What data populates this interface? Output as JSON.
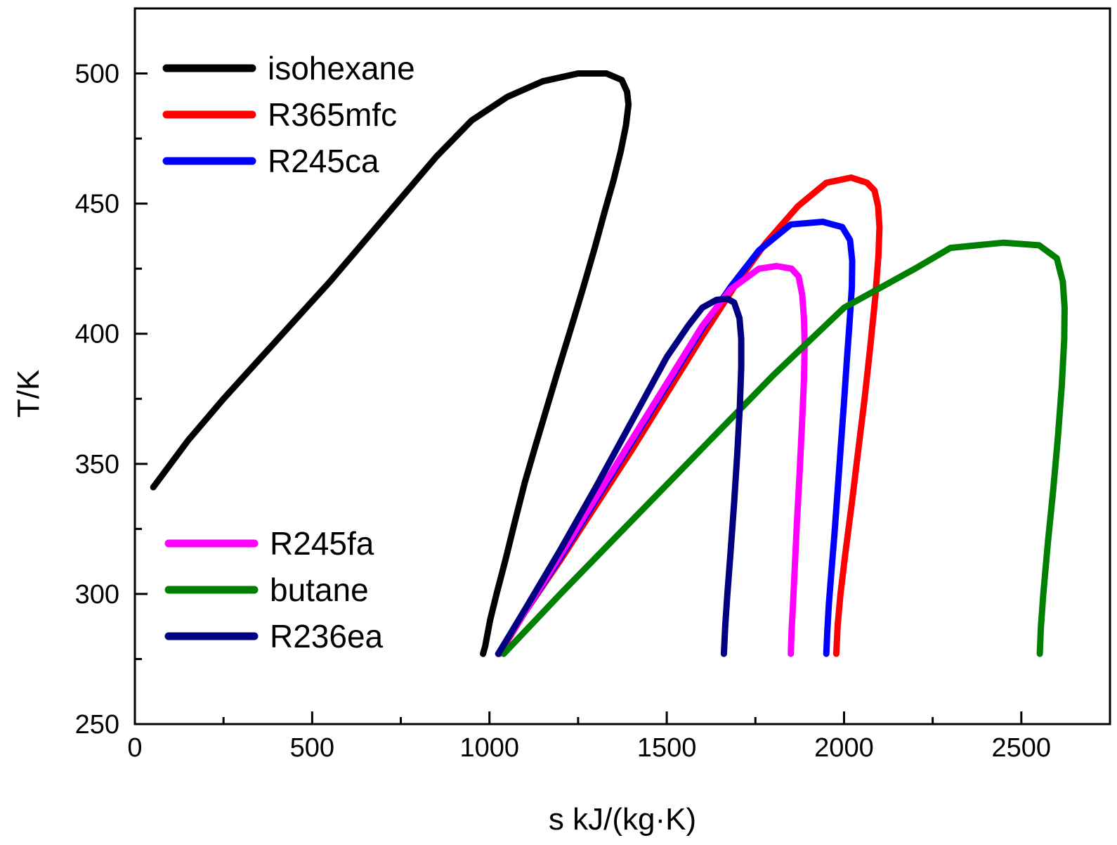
{
  "chart_data": {
    "type": "line",
    "title": "",
    "xlabel": "s kJ/(kg·K)",
    "ylabel": "T/K",
    "xlim": [
      0,
      2750
    ],
    "ylim": [
      250,
      525
    ],
    "xticks": [
      0,
      500,
      1000,
      1500,
      2000,
      2500
    ],
    "yticks": [
      250,
      300,
      350,
      400,
      450,
      500
    ],
    "x_minor_step": 250,
    "y_minor_step": 25,
    "grid": false,
    "legend_groups": [
      {
        "placement": "top-left",
        "entries": [
          "isohexane",
          "R365mfc",
          "R245ca"
        ]
      },
      {
        "placement": "bottom-left",
        "entries": [
          "R245fa",
          "butane",
          "R236ea"
        ]
      }
    ],
    "series": [
      {
        "name": "isohexane",
        "color": "#000000",
        "points": [
          [
            52,
            341
          ],
          [
            150,
            359
          ],
          [
            250,
            375
          ],
          [
            350,
            390
          ],
          [
            450,
            405
          ],
          [
            550,
            420
          ],
          [
            650,
            436
          ],
          [
            750,
            452
          ],
          [
            850,
            468
          ],
          [
            950,
            482
          ],
          [
            1050,
            491
          ],
          [
            1150,
            497
          ],
          [
            1250,
            500
          ],
          [
            1330,
            500
          ],
          [
            1373,
            497.5
          ],
          [
            1388,
            493
          ],
          [
            1392,
            488
          ],
          [
            1385,
            480
          ],
          [
            1370,
            470
          ],
          [
            1350,
            459
          ],
          [
            1325,
            447
          ],
          [
            1297,
            433
          ],
          [
            1265,
            418
          ],
          [
            1232,
            403
          ],
          [
            1198,
            388
          ],
          [
            1165,
            373
          ],
          [
            1130,
            357
          ],
          [
            1100,
            343
          ],
          [
            1072,
            328
          ],
          [
            1045,
            313
          ],
          [
            1020,
            300
          ],
          [
            1002,
            290
          ],
          [
            988,
            280
          ],
          [
            982,
            277
          ]
        ]
      },
      {
        "name": "R365mfc",
        "color": "#ff0000",
        "points": [
          [
            1028,
            277
          ],
          [
            1100,
            293
          ],
          [
            1200,
            313
          ],
          [
            1300,
            334
          ],
          [
            1400,
            355
          ],
          [
            1500,
            377
          ],
          [
            1600,
            399
          ],
          [
            1700,
            420
          ],
          [
            1780,
            435
          ],
          [
            1870,
            449
          ],
          [
            1950,
            458
          ],
          [
            2020,
            460
          ],
          [
            2065,
            458
          ],
          [
            2086,
            455
          ],
          [
            2096,
            449
          ],
          [
            2100,
            441
          ],
          [
            2097,
            430
          ],
          [
            2088,
            414
          ],
          [
            2074,
            395
          ],
          [
            2058,
            375
          ],
          [
            2040,
            355
          ],
          [
            2022,
            335
          ],
          [
            2004,
            316
          ],
          [
            1990,
            300
          ],
          [
            1982,
            288
          ],
          [
            1978,
            277
          ]
        ]
      },
      {
        "name": "R245ca",
        "color": "#0000ff",
        "points": [
          [
            1025,
            277
          ],
          [
            1100,
            293
          ],
          [
            1200,
            314
          ],
          [
            1300,
            336
          ],
          [
            1400,
            358
          ],
          [
            1500,
            380
          ],
          [
            1600,
            402
          ],
          [
            1680,
            418
          ],
          [
            1760,
            432
          ],
          [
            1850,
            442
          ],
          [
            1940,
            443
          ],
          [
            1995,
            441
          ],
          [
            2017,
            436
          ],
          [
            2023,
            428
          ],
          [
            2022,
            418
          ],
          [
            2016,
            405
          ],
          [
            2008,
            390
          ],
          [
            2000,
            374
          ],
          [
            1991,
            357
          ],
          [
            1982,
            340
          ],
          [
            1973,
            323
          ],
          [
            1964,
            308
          ],
          [
            1957,
            296
          ],
          [
            1953,
            286
          ],
          [
            1950,
            277
          ]
        ]
      },
      {
        "name": "R245fa",
        "color": "#ff00ff",
        "points": [
          [
            1025,
            277
          ],
          [
            1100,
            293
          ],
          [
            1200,
            315
          ],
          [
            1300,
            337
          ],
          [
            1400,
            359
          ],
          [
            1500,
            381
          ],
          [
            1600,
            403
          ],
          [
            1680,
            417
          ],
          [
            1760,
            425
          ],
          [
            1810,
            426
          ],
          [
            1852,
            425
          ],
          [
            1872,
            422
          ],
          [
            1882,
            415
          ],
          [
            1887,
            406
          ],
          [
            1889,
            396
          ],
          [
            1887,
            382
          ],
          [
            1881,
            364
          ],
          [
            1874,
            345
          ],
          [
            1867,
            327
          ],
          [
            1861,
            310
          ],
          [
            1856,
            296
          ],
          [
            1852,
            286
          ],
          [
            1850,
            277
          ]
        ]
      },
      {
        "name": "butane",
        "color": "#008000",
        "points": [
          [
            1040,
            277
          ],
          [
            1200,
            300
          ],
          [
            1400,
            328
          ],
          [
            1600,
            356
          ],
          [
            1800,
            384
          ],
          [
            2000,
            410
          ],
          [
            2200,
            425
          ],
          [
            2300,
            433
          ],
          [
            2450,
            435
          ],
          [
            2550,
            434
          ],
          [
            2600,
            429
          ],
          [
            2617,
            420
          ],
          [
            2622,
            410
          ],
          [
            2621,
            398
          ],
          [
            2614,
            380
          ],
          [
            2603,
            360
          ],
          [
            2590,
            340
          ],
          [
            2575,
            320
          ],
          [
            2562,
            300
          ],
          [
            2555,
            287
          ],
          [
            2552,
            277
          ]
        ]
      },
      {
        "name": "R236ea",
        "color": "#000080",
        "points": [
          [
            1025,
            277
          ],
          [
            1100,
            294
          ],
          [
            1200,
            317
          ],
          [
            1300,
            341
          ],
          [
            1400,
            366
          ],
          [
            1500,
            391
          ],
          [
            1560,
            403
          ],
          [
            1600,
            410
          ],
          [
            1640,
            413
          ],
          [
            1670,
            413.5
          ],
          [
            1690,
            412
          ],
          [
            1705,
            406
          ],
          [
            1710,
            398
          ],
          [
            1710,
            387
          ],
          [
            1706,
            372
          ],
          [
            1699,
            354
          ],
          [
            1690,
            335
          ],
          [
            1680,
            316
          ],
          [
            1671,
            300
          ],
          [
            1665,
            288
          ],
          [
            1661,
            277
          ]
        ]
      }
    ]
  }
}
